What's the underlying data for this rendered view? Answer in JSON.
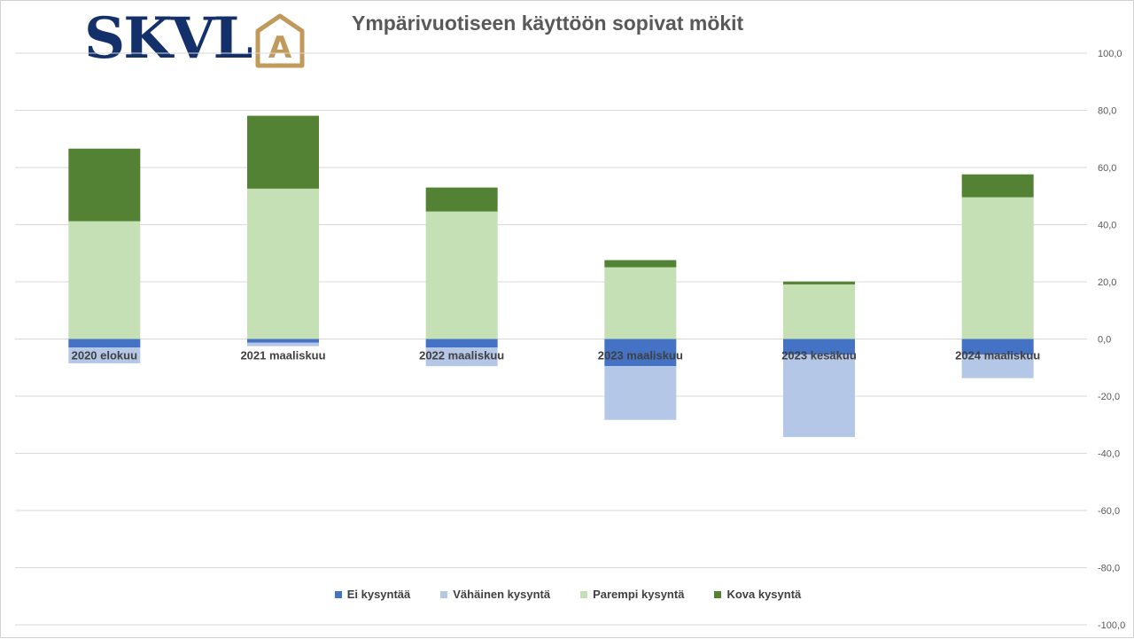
{
  "logo": {
    "text": "SKVL",
    "mark": "A"
  },
  "colors": {
    "ei": "#4472c4",
    "vahainen": "#b4c7e7",
    "parempi": "#c5e0b4",
    "kova": "#548235",
    "grid": "#d9d9d9",
    "logo_navy": "#14306b",
    "logo_gold": "#c09a5b"
  },
  "chart_data": {
    "type": "bar",
    "stacked": true,
    "title": "Ympärivuotiseen käyttöön sopivat mökit",
    "categories": [
      "2020 elokuu",
      "2021 maaliskuu",
      "2022 maaliskuu",
      "2023 maaliskuu",
      "2023 kesäkuu",
      "2024 maaliskuu"
    ],
    "series": [
      {
        "name": "Ei kysyntää",
        "key": "ei",
        "values": [
          -3.0,
          -1.3,
          -3.0,
          -9.5,
          -5.5,
          -5.5
        ]
      },
      {
        "name": "Vähäinen kysyntä",
        "key": "vahainen",
        "values": [
          -5.5,
          -1.2,
          -6.5,
          -18.8,
          -28.8,
          -8.2
        ]
      },
      {
        "name": "Parempi kysyntä",
        "key": "parempi",
        "values": [
          41.2,
          52.6,
          44.6,
          25.1,
          19.1,
          49.6
        ]
      },
      {
        "name": "Kova kysyntä",
        "key": "kova",
        "values": [
          25.4,
          25.5,
          8.4,
          2.5,
          1.0,
          8.0
        ]
      }
    ],
    "ylim": [
      -100,
      100
    ],
    "yticks": [
      "100,0",
      "80,0",
      "60,0",
      "40,0",
      "20,0",
      "0,0",
      "-20,0",
      "-40,0",
      "-60,0",
      "-80,0",
      "-100,0"
    ],
    "ytick_values": [
      100,
      80,
      60,
      40,
      20,
      0,
      -20,
      -40,
      -60,
      -80,
      -100
    ],
    "y_axis_position": "right",
    "grid": true,
    "legend_position": "bottom"
  }
}
